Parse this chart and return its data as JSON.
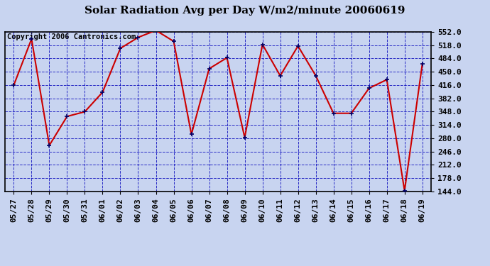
{
  "title": "Solar Radiation Avg per Day W/m2/minute 20060619",
  "copyright": "Copyright 2006 Cantronics.com",
  "x_labels": [
    "05/27",
    "05/28",
    "05/29",
    "05/30",
    "05/31",
    "06/01",
    "06/02",
    "06/03",
    "06/04",
    "06/05",
    "06/06",
    "06/07",
    "06/08",
    "06/09",
    "06/10",
    "06/11",
    "06/12",
    "06/13",
    "06/14",
    "06/15",
    "06/16",
    "06/17",
    "06/18",
    "06/19"
  ],
  "y_values": [
    416,
    534,
    262,
    336,
    348,
    398,
    510,
    538,
    556,
    528,
    290,
    458,
    486,
    282,
    520,
    440,
    516,
    440,
    344,
    344,
    408,
    430,
    146,
    470
  ],
  "y_min": 144.0,
  "y_max": 552.0,
  "y_ticks": [
    144.0,
    178.0,
    212.0,
    246.0,
    280.0,
    314.0,
    348.0,
    382.0,
    416.0,
    450.0,
    484.0,
    518.0,
    552.0
  ],
  "line_color": "#cc0000",
  "marker_color": "#000066",
  "bg_color": "#c8d4f0",
  "plot_bg_color": "#c8d4f0",
  "grid_color": "#0000bb",
  "title_color": "#000000",
  "copyright_color": "#000000",
  "title_fontsize": 11,
  "tick_fontsize": 8,
  "copyright_fontsize": 7.5
}
